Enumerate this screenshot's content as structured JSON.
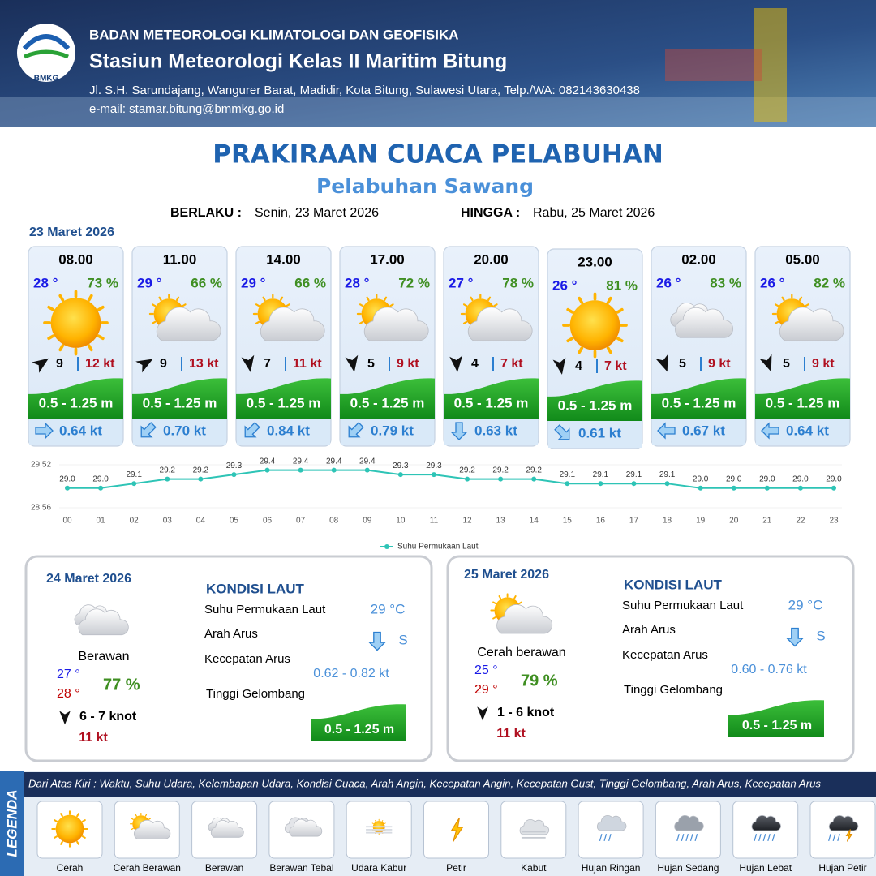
{
  "header": {
    "logo": "BMKG",
    "agency": "BADAN METEOROLOGI KLIMATOLOGI DAN GEOFISIKA",
    "station": "Stasiun Meteorologi Kelas II Maritim Bitung",
    "address": "Jl. S.H. Sarundajang, Wangurer Barat, Madidir, Kota Bitung, Sulawesi Utara, Telp./WA: 082143630438",
    "email": "e-mail: stamar.bitung@bmmkg.go.id"
  },
  "title": "PRAKIRAAN CUACA PELABUHAN",
  "subtitle": "Pelabuhan Sawang",
  "validity": {
    "from_label": "BERLAKU :",
    "from": "Senin, 23 Maret 2026",
    "to_label": "HINGGA :",
    "to": "Rabu, 25 Maret 2026"
  },
  "day1_date": "23 Maret 2026",
  "hourly": [
    {
      "time": "08.00",
      "temp": "28 °",
      "humidity": "73 %",
      "wind": "9",
      "gust": "12 kt",
      "wave": "0.5 - 1.25 m",
      "current": "0.64 kt"
    },
    {
      "time": "11.00",
      "temp": "29 °",
      "humidity": "66 %",
      "wind": "9",
      "gust": "13 kt",
      "wave": "0.5 - 1.25 m",
      "current": "0.70 kt"
    },
    {
      "time": "14.00",
      "temp": "29 °",
      "humidity": "66 %",
      "wind": "7",
      "gust": "11 kt",
      "wave": "0.5 - 1.25 m",
      "current": "0.84 kt"
    },
    {
      "time": "17.00",
      "temp": "28 °",
      "humidity": "72 %",
      "wind": "5",
      "gust": "9 kt",
      "wave": "0.5 - 1.25 m",
      "current": "0.79 kt"
    },
    {
      "time": "20.00",
      "temp": "27 °",
      "humidity": "78 %",
      "wind": "4",
      "gust": "7 kt",
      "wave": "0.5 - 1.25 m",
      "current": "0.63 kt"
    },
    {
      "time": "23.00",
      "temp": "26 °",
      "humidity": "81 %",
      "wind": "4",
      "gust": "7 kt",
      "wave": "0.5 - 1.25 m",
      "current": "0.61 kt"
    },
    {
      "time": "02.00",
      "temp": "26 °",
      "humidity": "83 %",
      "wind": "5",
      "gust": "9 kt",
      "wave": "0.5 - 1.25 m",
      "current": "0.67 kt"
    },
    {
      "time": "05.00",
      "temp": "26 °",
      "humidity": "82 %",
      "wind": "5",
      "gust": "9 kt",
      "wave": "0.5 - 1.25 m",
      "current": "0.64 kt"
    }
  ],
  "chart_data": {
    "type": "line",
    "categories": [
      "00",
      "01",
      "02",
      "03",
      "04",
      "05",
      "06",
      "07",
      "08",
      "09",
      "10",
      "11",
      "12",
      "13",
      "14",
      "15",
      "16",
      "17",
      "18",
      "19",
      "20",
      "21",
      "22",
      "23"
    ],
    "series": [
      {
        "name": "Suhu Permukaan Laut",
        "color": "#2ec4b6",
        "values": [
          29.0,
          29.0,
          29.1,
          29.2,
          29.2,
          29.3,
          29.4,
          29.4,
          29.4,
          29.4,
          29.3,
          29.3,
          29.2,
          29.2,
          29.2,
          29.1,
          29.1,
          29.1,
          29.1,
          29.0,
          29.0,
          29.0,
          29.0,
          29.0
        ],
        "value_labels": [
          "29.0",
          "29.0",
          "29.1",
          "29.2",
          "29.2",
          "29.3",
          "29.4",
          "29.4",
          "29.4",
          "29.4",
          "29.3",
          "29.3",
          "29.2",
          "29.2",
          "29.2",
          "29.1",
          "29.1",
          "29.1",
          "29.1",
          "29.0",
          "29.0",
          "29.0",
          "29.0",
          "29.0"
        ]
      }
    ],
    "ylim": [
      28.56,
      29.52
    ],
    "yticks": [
      28.56,
      29.52
    ],
    "grid": true
  },
  "daily": [
    {
      "date": "24 Maret 2026",
      "condition": "Berawan",
      "temp_min": "27 °",
      "temp_max": "28 °",
      "humidity": "77 %",
      "wind": "6  - 7 knot",
      "gust": "11 kt",
      "sea_title": "KONDISI LAUT",
      "sst_label": "Suhu Permukaan Laut",
      "sst": "29 °C",
      "current_dir_label": "Arah Arus",
      "current_dir": "S",
      "current_speed_label": "Kecepatan Arus",
      "current_speed": "0.62 - 0.82 kt",
      "wave_label": "Tinggi Gelombang",
      "wave": "0.5 - 1.25 m"
    },
    {
      "date": "25 Maret 2026",
      "condition": "Cerah berawan",
      "temp_min": "25 °",
      "temp_max": "29 °",
      "humidity": "79 %",
      "wind": "1 - 6 knot",
      "gust": "11 kt",
      "sea_title": "KONDISI LAUT",
      "sst_label": "Suhu Permukaan Laut",
      "sst": "29 °C",
      "current_dir_label": "Arah Arus",
      "current_dir": "S",
      "current_speed_label": "Kecepatan Arus",
      "current_speed": "0.60 - 0.76 kt",
      "wave_label": "Tinggi Gelombang",
      "wave": "0.5 - 1.25 m"
    }
  ],
  "legend": {
    "title": "LEGENDA",
    "description": "Dari Atas Kiri : Waktu, Suhu Udara, Kelembapan Udara, Kondisi Cuaca, Arah Angin, Kecepatan Angin, Kecepatan Gust, Tinggi Gelombang, Arah Arus, Kecepatan Arus",
    "items": [
      "Cerah",
      "Cerah Berawan",
      "Berawan",
      "Berawan Tebal",
      "Udara Kabur",
      "Petir",
      "Kabut",
      "Hujan Ringan",
      "Hujan Sedang",
      "Hujan Lebat",
      "Hujan Petir"
    ]
  }
}
